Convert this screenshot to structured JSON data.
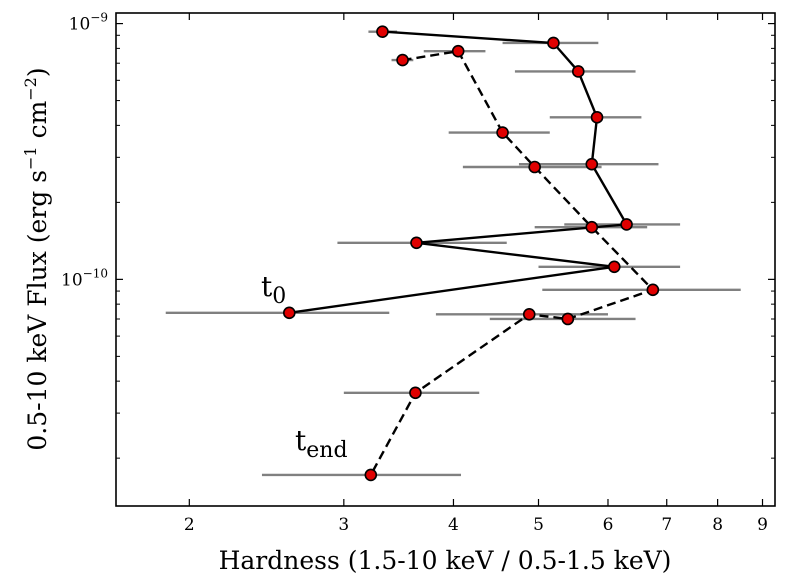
{
  "chart_data": {
    "type": "scatter",
    "title": "",
    "xlabel": "Hardness (1.5-10 keV / 0.5-1.5 keV)",
    "ylabel_parts": {
      "main": "0.5-10 keV Flux (erg s",
      "exp1": "−1",
      "mid": " cm",
      "exp2": "−2",
      "end": ")"
    },
    "xscale": "log",
    "yscale": "log",
    "xlim": [
      1.65,
      9.3
    ],
    "ylim": [
      1.3e-11,
      1.1e-09
    ],
    "x_tick_labels": [
      {
        "value": 2,
        "label": "2"
      },
      {
        "value": 3,
        "label": "3"
      },
      {
        "value": 4,
        "label": "4"
      },
      {
        "value": 5,
        "label": "5"
      },
      {
        "value": 6,
        "label": "6"
      },
      {
        "value": 7,
        "label": "7"
      },
      {
        "value": 8,
        "label": "8"
      },
      {
        "value": 9,
        "label": "9"
      }
    ],
    "y_tick_labels": [
      {
        "value": 1e-09,
        "base": "10",
        "exp": "−9"
      },
      {
        "value": 1e-10,
        "base": "10",
        "exp": "−10"
      }
    ],
    "annotations": [
      {
        "base": "t",
        "sub": "0"
      },
      {
        "base": "t",
        "sub": "end"
      }
    ],
    "series": [
      {
        "name": "solid",
        "line_style": "solid",
        "points": [
          {
            "x": 2.6,
            "y": 7.4e-11,
            "xerr_low": 1.88,
            "xerr_high": 3.38
          },
          {
            "x": 6.1,
            "y": 1.12e-10,
            "xerr_low": 5.0,
            "xerr_high": 7.25
          },
          {
            "x": 3.63,
            "y": 1.39e-10,
            "xerr_low": 2.95,
            "xerr_high": 4.6
          },
          {
            "x": 6.3,
            "y": 1.64e-10,
            "xerr_low": 5.35,
            "xerr_high": 7.25
          },
          {
            "x": 5.75,
            "y": 2.82e-10,
            "xerr_low": 4.75,
            "xerr_high": 6.85
          },
          {
            "x": 5.83,
            "y": 4.3e-10,
            "xerr_low": 5.15,
            "xerr_high": 6.55
          },
          {
            "x": 5.55,
            "y": 6.5e-10,
            "xerr_low": 4.7,
            "xerr_high": 6.45
          },
          {
            "x": 5.2,
            "y": 8.4e-10,
            "xerr_low": 4.55,
            "xerr_high": 5.85
          },
          {
            "x": 3.32,
            "y": 9.3e-10,
            "xerr_low": 3.2,
            "xerr_high": 3.45
          }
        ]
      },
      {
        "name": "dashed",
        "line_style": "dashed",
        "points": [
          {
            "x": 3.5,
            "y": 7.2e-10,
            "xerr_low": 3.4,
            "xerr_high": 3.6
          },
          {
            "x": 4.05,
            "y": 7.8e-10,
            "xerr_low": 3.7,
            "xerr_high": 4.35
          },
          {
            "x": 4.55,
            "y": 3.75e-10,
            "xerr_low": 3.95,
            "xerr_high": 5.15
          },
          {
            "x": 4.95,
            "y": 2.75e-10,
            "xerr_low": 4.1,
            "xerr_high": 5.9
          },
          {
            "x": 5.75,
            "y": 1.6e-10,
            "xerr_low": 4.95,
            "xerr_high": 6.65
          },
          {
            "x": 6.75,
            "y": 9.1e-11,
            "xerr_low": 5.05,
            "xerr_high": 8.5
          },
          {
            "x": 5.4,
            "y": 7e-11,
            "xerr_low": 4.4,
            "xerr_high": 6.45
          },
          {
            "x": 4.88,
            "y": 7.3e-11,
            "xerr_low": 3.82,
            "xerr_high": 6.0
          },
          {
            "x": 3.62,
            "y": 3.6e-11,
            "xerr_low": 3.0,
            "xerr_high": 4.28
          },
          {
            "x": 3.22,
            "y": 1.72e-11,
            "xerr_low": 2.42,
            "xerr_high": 4.08
          }
        ]
      }
    ],
    "colors": {
      "marker_fill": "#e00000",
      "marker_edge": "#000000",
      "errorbar": "#808080",
      "line": "#000000"
    }
  }
}
